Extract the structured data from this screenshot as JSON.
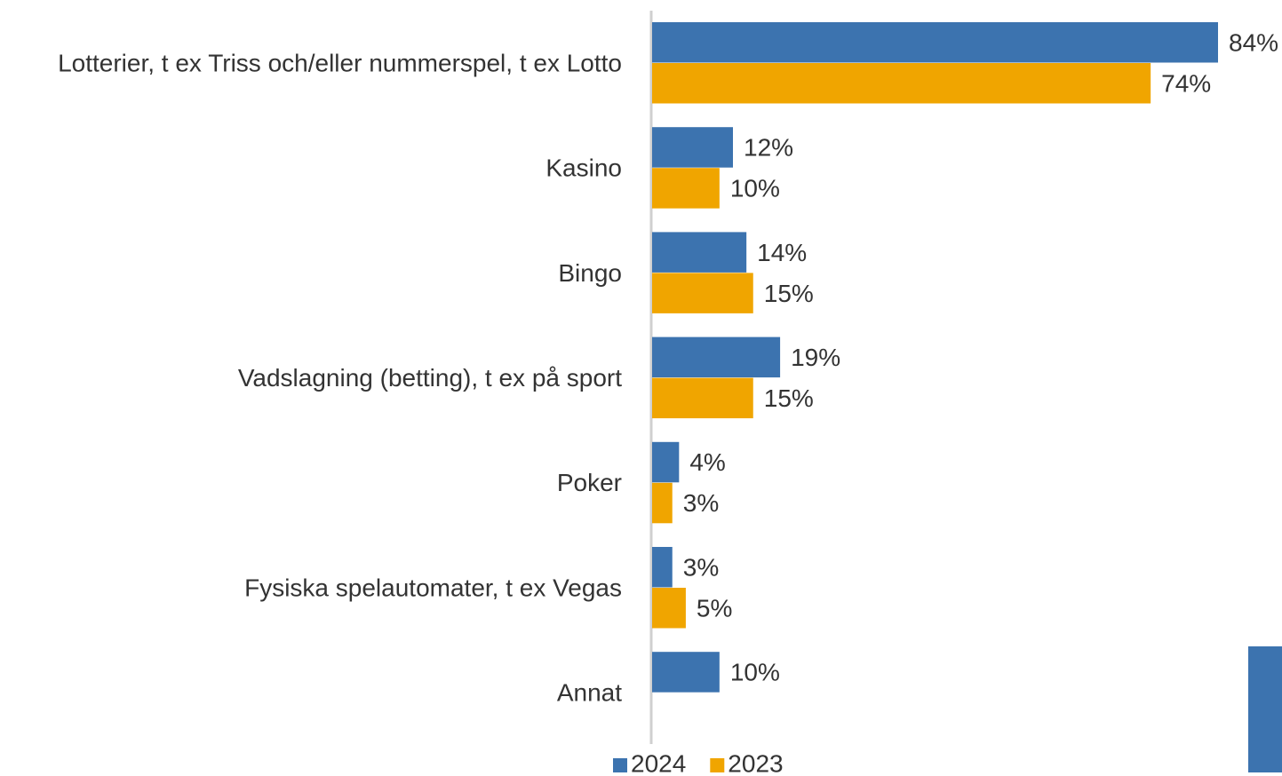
{
  "chart_data": {
    "type": "bar",
    "orientation": "horizontal",
    "categories": [
      "Lotterier, t ex Triss och/eller nummerspel, t ex Lotto",
      "Kasino",
      "Bingo",
      "Vadslagning (betting), t ex på sport",
      "Poker",
      "Fysiska spelautomater, t ex Vegas",
      "Annat"
    ],
    "series": [
      {
        "name": "2024",
        "color": "#3c73af",
        "values": [
          84,
          12,
          14,
          19,
          4,
          3,
          10
        ],
        "value_labels": [
          "84%",
          "12%",
          "14%",
          "19%",
          "4%",
          "3%",
          "10%"
        ]
      },
      {
        "name": "2023",
        "color": "#f0a500",
        "values": [
          74,
          10,
          15,
          15,
          3,
          5,
          null
        ],
        "value_labels": [
          "74%",
          "10%",
          "15%",
          "15%",
          "3%",
          "5%",
          null
        ]
      }
    ],
    "legend": "bottom"
  }
}
